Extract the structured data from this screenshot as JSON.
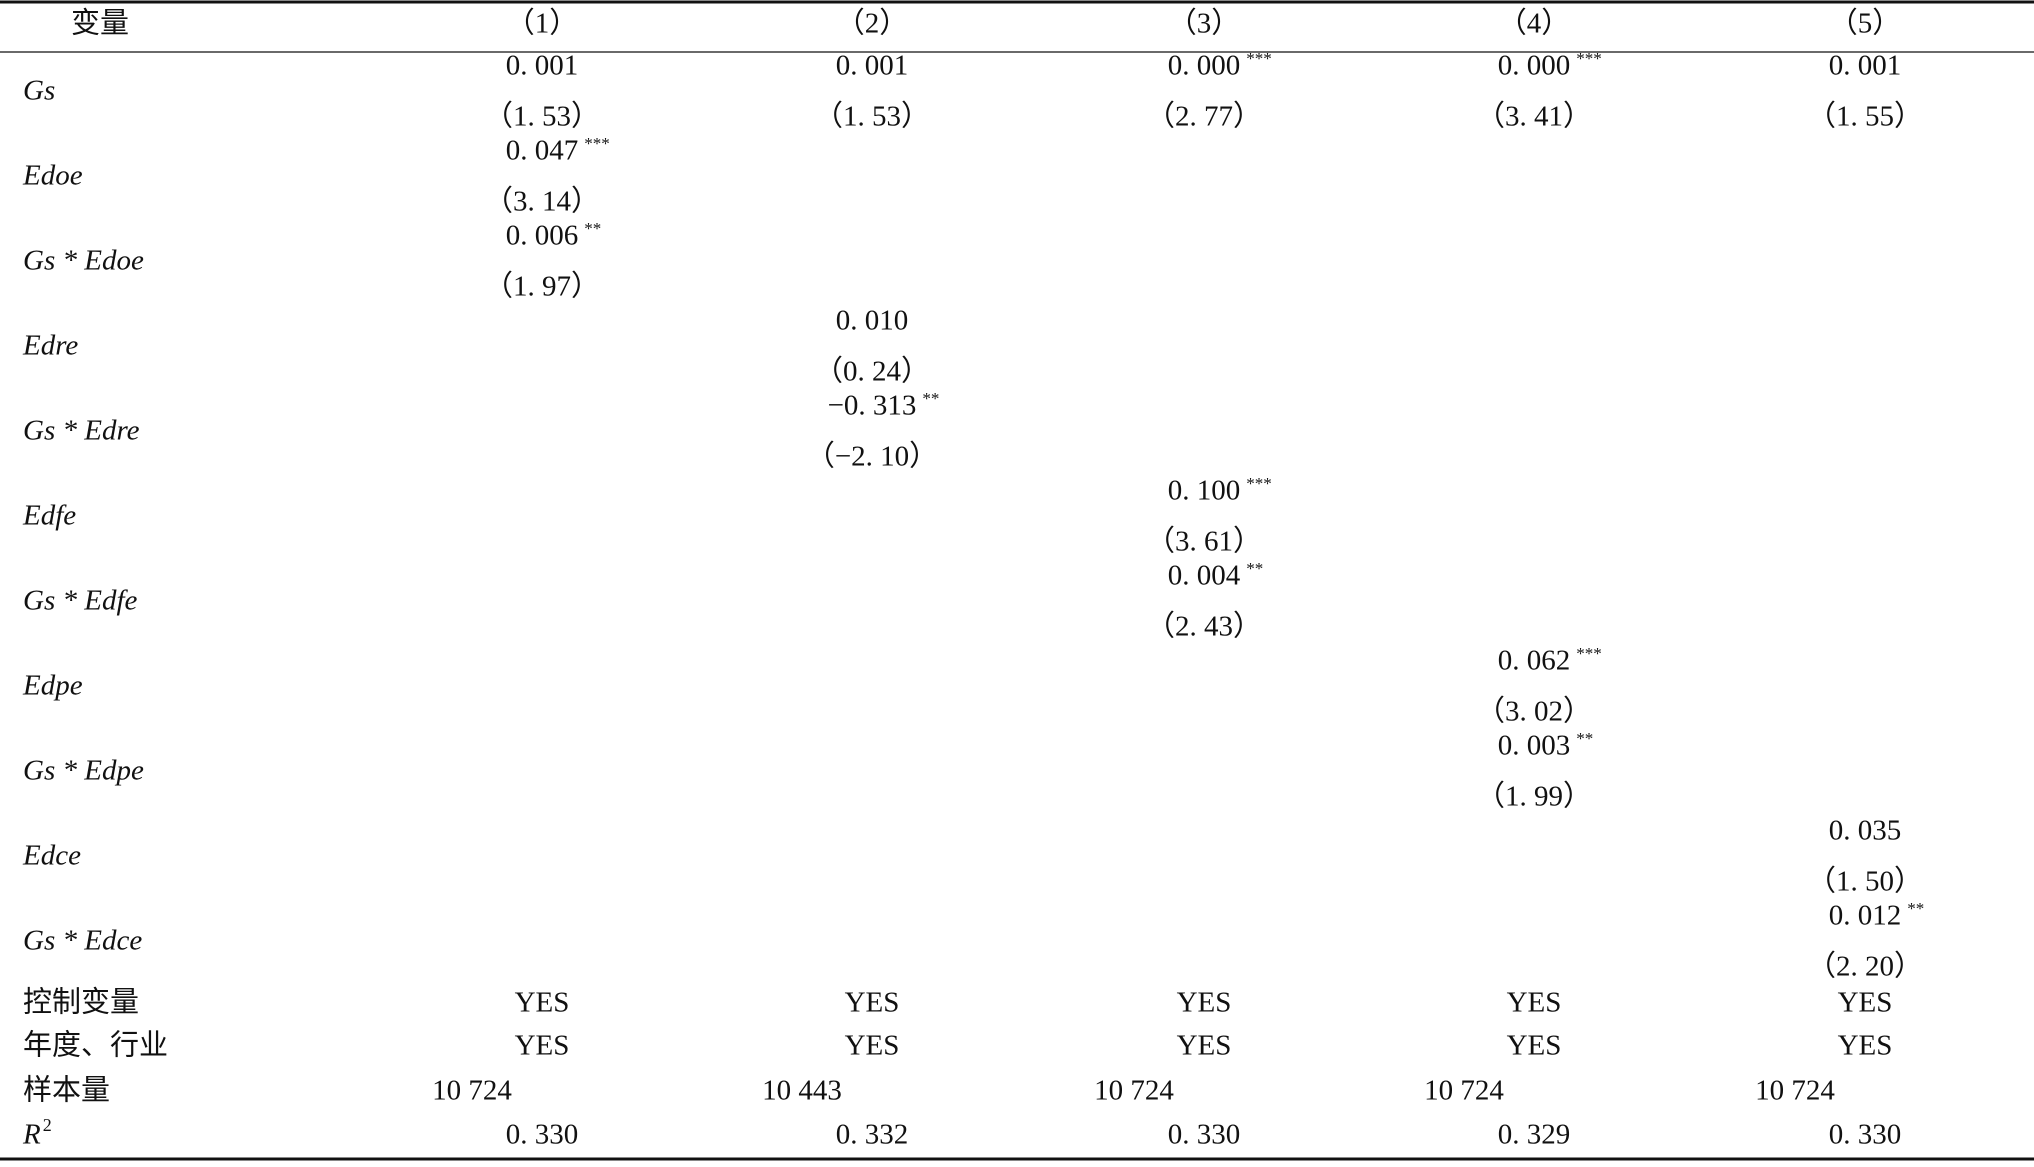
{
  "table": {
    "header": [
      "变量",
      "（1）",
      "（2）",
      "（3）",
      "（4）",
      "（5）"
    ],
    "rows": [
      {
        "label": "Gs",
        "cells": [
          {
            "coef": "0. 001",
            "t": "（1. 53）"
          },
          {
            "coef": "0. 001",
            "t": "（1. 53）"
          },
          {
            "coef": "0. 000",
            "stars": "***",
            "t": "（2. 77）"
          },
          {
            "coef": "0. 000",
            "stars": "***",
            "t": "（3. 41）"
          },
          {
            "coef": "0. 001",
            "t": "（1. 55）"
          }
        ]
      },
      {
        "label": "Edoe",
        "cells": [
          {
            "coef": "0. 047",
            "stars": "***",
            "t": "（3. 14）"
          },
          null,
          null,
          null,
          null
        ]
      },
      {
        "label": "Gs * Edoe",
        "cells": [
          {
            "coef": "0. 006",
            "stars": "**",
            "t": "（1. 97）"
          },
          null,
          null,
          null,
          null
        ]
      },
      {
        "label": "Edre",
        "cells": [
          null,
          {
            "coef": "0. 010",
            "t": "（0. 24）"
          },
          null,
          null,
          null
        ]
      },
      {
        "label": "Gs * Edre",
        "cells": [
          null,
          {
            "coef": "−0. 313",
            "stars": "**",
            "t": "（−2. 10）"
          },
          null,
          null,
          null
        ]
      },
      {
        "label": "Edfe",
        "cells": [
          null,
          null,
          {
            "coef": "0. 100",
            "stars": "***",
            "t": "（3. 61）"
          },
          null,
          null
        ]
      },
      {
        "label": "Gs * Edfe",
        "cells": [
          null,
          null,
          {
            "coef": "0. 004",
            "stars": "**",
            "t": "（2. 43）"
          },
          null,
          null
        ]
      },
      {
        "label": "Edpe",
        "cells": [
          null,
          null,
          null,
          {
            "coef": "0. 062",
            "stars": "***",
            "t": "（3. 02）"
          },
          null
        ]
      },
      {
        "label": "Gs * Edpe",
        "cells": [
          null,
          null,
          null,
          {
            "coef": "0. 003",
            "stars": "**",
            "t": "（1. 99）"
          },
          null
        ]
      },
      {
        "label": "Edce",
        "cells": [
          null,
          null,
          null,
          null,
          {
            "coef": "0. 035",
            "t": "（1. 50）"
          }
        ]
      },
      {
        "label": "Gs * Edce",
        "cells": [
          null,
          null,
          null,
          null,
          {
            "coef": "0. 012",
            "stars": "**",
            "t": "（2. 20）"
          }
        ]
      }
    ],
    "footer": [
      {
        "label": "控制变量",
        "values": [
          "YES",
          "YES",
          "YES",
          "YES",
          "YES"
        ]
      },
      {
        "label": "年度、行业",
        "values": [
          "YES",
          "YES",
          "YES",
          "YES",
          "YES"
        ]
      },
      {
        "label": "样本量",
        "values": [
          "10 724",
          "10 443",
          "10 724",
          "10 724",
          "10 724"
        ]
      },
      {
        "label": "R",
        "sup": "2",
        "values": [
          "0. 330",
          "0. 332",
          "0. 330",
          "0. 329",
          "0. 330"
        ]
      }
    ]
  }
}
